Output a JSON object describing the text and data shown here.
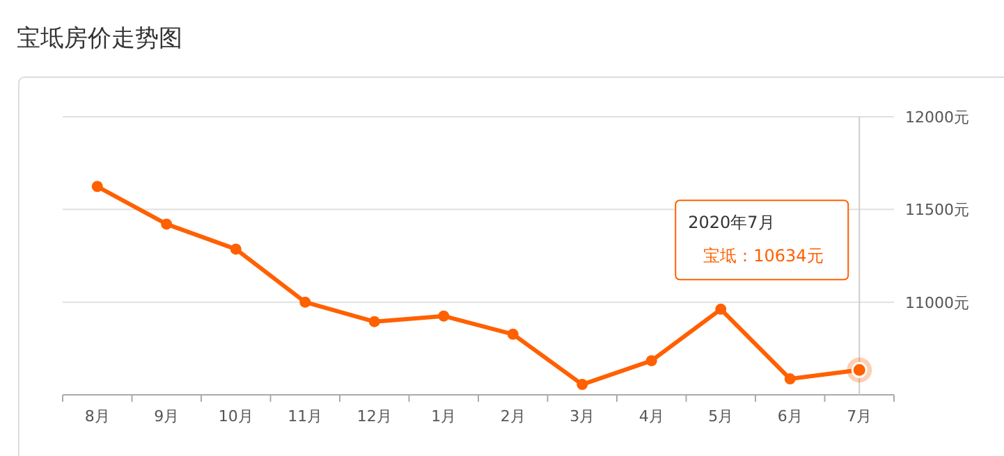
{
  "chart_data": {
    "type": "line",
    "title": "宝坻房价走势图",
    "categories": [
      "8月",
      "9月",
      "10月",
      "11月",
      "12月",
      "1月",
      "2月",
      "3月",
      "4月",
      "5月",
      "6月",
      "7月"
    ],
    "series": [
      {
        "color": "#ff6000",
        "values": [
          11624,
          11421,
          11286,
          11000,
          10895,
          10925,
          10827,
          10556,
          10684,
          10962,
          10586,
          10634
        ]
      }
    ],
    "ylim": [
      10500,
      12000
    ],
    "yticks": [
      {
        "value": 10500,
        "label": null
      },
      {
        "value": 11000,
        "label": "11000元"
      },
      {
        "value": 11500,
        "label": "11500元"
      },
      {
        "value": 12000,
        "label": "12000元"
      }
    ],
    "grid": "y",
    "marker": "circle",
    "line_style": "solid",
    "ref_lines": [
      {
        "axis": "x",
        "value": "7月",
        "label": null,
        "color": "#cccccc"
      }
    ],
    "annotations": [
      "2020年7月",
      "宝坻：10634元"
    ]
  }
}
